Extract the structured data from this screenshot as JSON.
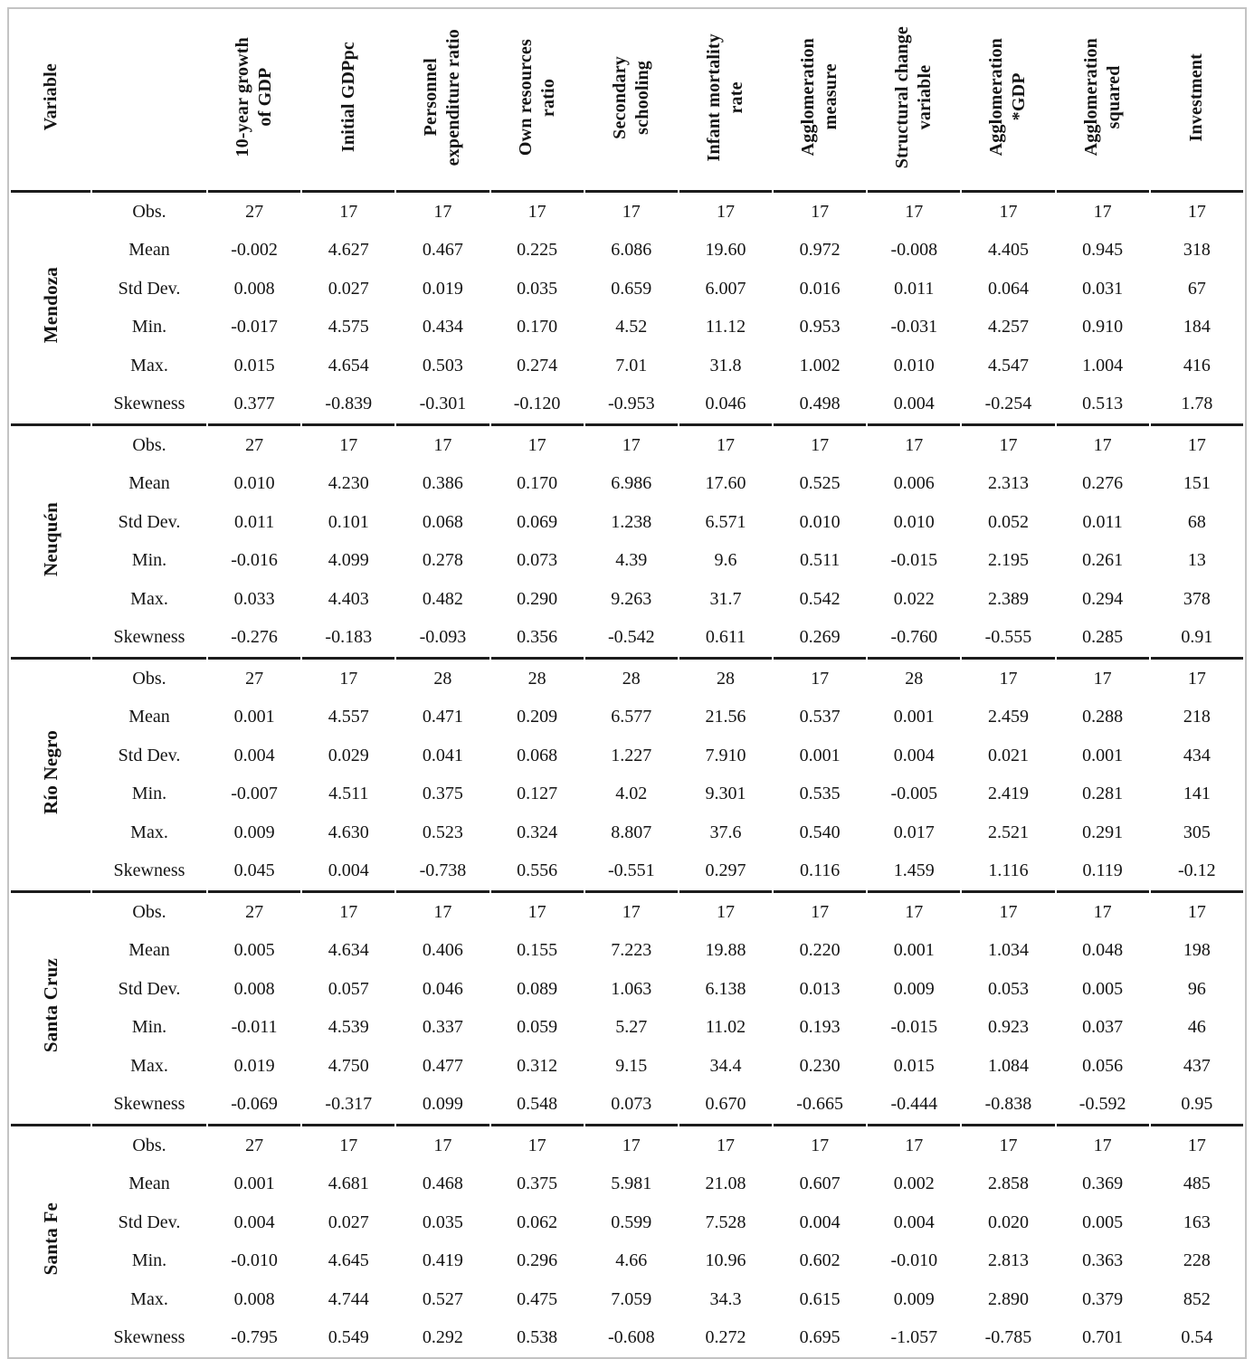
{
  "table": {
    "corner_label": "Variable",
    "columns": [
      "10-year growth\nof GDP",
      "Initial GDPpc",
      "Personnel\nexpenditure ratio",
      "Own resources\nratio",
      "Secondary\nschooling",
      "Infant mortality\nrate",
      "Agglomeration\nmeasure",
      "Structural change\nvariable",
      "Agglomeration\n*GDP",
      "Agglomeration\nsquared",
      "Investment"
    ],
    "stat_labels": [
      "Obs.",
      "Mean",
      "Std Dev.",
      "Min.",
      "Max.",
      "Skewness"
    ],
    "groups": [
      {
        "province": "Mendoza",
        "rows": [
          {
            "label": "Obs.",
            "values": [
              "27",
              "17",
              "17",
              "17",
              "17",
              "17",
              "17",
              "17",
              "17",
              "17",
              "17"
            ]
          },
          {
            "label": "Mean",
            "values": [
              "-0.002",
              "4.627",
              "0.467",
              "0.225",
              "6.086",
              "19.60",
              "0.972",
              "-0.008",
              "4.405",
              "0.945",
              "318"
            ]
          },
          {
            "label": "Std Dev.",
            "values": [
              "0.008",
              "0.027",
              "0.019",
              "0.035",
              "0.659",
              "6.007",
              "0.016",
              "0.011",
              "0.064",
              "0.031",
              "67"
            ]
          },
          {
            "label": "Min.",
            "values": [
              "-0.017",
              "4.575",
              "0.434",
              "0.170",
              "4.52",
              "11.12",
              "0.953",
              "-0.031",
              "4.257",
              "0.910",
              "184"
            ]
          },
          {
            "label": "Max.",
            "values": [
              "0.015",
              "4.654",
              "0.503",
              "0.274",
              "7.01",
              "31.8",
              "1.002",
              "0.010",
              "4.547",
              "1.004",
              "416"
            ]
          },
          {
            "label": "Skewness",
            "values": [
              "0.377",
              "-0.839",
              "-0.301",
              "-0.120",
              "-0.953",
              "0.046",
              "0.498",
              "0.004",
              "-0.254",
              "0.513",
              "1.78"
            ]
          }
        ]
      },
      {
        "province": "Neuquén",
        "rows": [
          {
            "label": "Obs.",
            "values": [
              "27",
              "17",
              "17",
              "17",
              "17",
              "17",
              "17",
              "17",
              "17",
              "17",
              "17"
            ]
          },
          {
            "label": "Mean",
            "values": [
              "0.010",
              "4.230",
              "0.386",
              "0.170",
              "6.986",
              "17.60",
              "0.525",
              "0.006",
              "2.313",
              "0.276",
              "151"
            ]
          },
          {
            "label": "Std Dev.",
            "values": [
              "0.011",
              "0.101",
              "0.068",
              "0.069",
              "1.238",
              "6.571",
              "0.010",
              "0.010",
              "0.052",
              "0.011",
              "68"
            ]
          },
          {
            "label": "Min.",
            "values": [
              "-0.016",
              "4.099",
              "0.278",
              "0.073",
              "4.39",
              "9.6",
              "0.511",
              "-0.015",
              "2.195",
              "0.261",
              "13"
            ]
          },
          {
            "label": "Max.",
            "values": [
              "0.033",
              "4.403",
              "0.482",
              "0.290",
              "9.263",
              "31.7",
              "0.542",
              "0.022",
              "2.389",
              "0.294",
              "378"
            ]
          },
          {
            "label": "Skewness",
            "values": [
              "-0.276",
              "-0.183",
              "-0.093",
              "0.356",
              "-0.542",
              "0.611",
              "0.269",
              "-0.760",
              "-0.555",
              "0.285",
              "0.91"
            ]
          }
        ]
      },
      {
        "province": "Río Negro",
        "rows": [
          {
            "label": "Obs.",
            "values": [
              "27",
              "17",
              "28",
              "28",
              "28",
              "28",
              "17",
              "28",
              "17",
              "17",
              "17"
            ]
          },
          {
            "label": "Mean",
            "values": [
              "0.001",
              "4.557",
              "0.471",
              "0.209",
              "6.577",
              "21.56",
              "0.537",
              "0.001",
              "2.459",
              "0.288",
              "218"
            ]
          },
          {
            "label": "Std Dev.",
            "values": [
              "0.004",
              "0.029",
              "0.041",
              "0.068",
              "1.227",
              "7.910",
              "0.001",
              "0.004",
              "0.021",
              "0.001",
              "434"
            ]
          },
          {
            "label": "Min.",
            "values": [
              "-0.007",
              "4.511",
              "0.375",
              "0.127",
              "4.02",
              "9.301",
              "0.535",
              "-0.005",
              "2.419",
              "0.281",
              "141"
            ]
          },
          {
            "label": "Max.",
            "values": [
              "0.009",
              "4.630",
              "0.523",
              "0.324",
              "8.807",
              "37.6",
              "0.540",
              "0.017",
              "2.521",
              "0.291",
              "305"
            ]
          },
          {
            "label": "Skewness",
            "values": [
              "0.045",
              "0.004",
              "-0.738",
              "0.556",
              "-0.551",
              "0.297",
              "0.116",
              "1.459",
              "1.116",
              "0.119",
              "-0.12"
            ]
          }
        ]
      },
      {
        "province": "Santa Cruz",
        "rows": [
          {
            "label": "Obs.",
            "values": [
              "27",
              "17",
              "17",
              "17",
              "17",
              "17",
              "17",
              "17",
              "17",
              "17",
              "17"
            ]
          },
          {
            "label": "Mean",
            "values": [
              "0.005",
              "4.634",
              "0.406",
              "0.155",
              "7.223",
              "19.88",
              "0.220",
              "0.001",
              "1.034",
              "0.048",
              "198"
            ]
          },
          {
            "label": "Std Dev.",
            "values": [
              "0.008",
              "0.057",
              "0.046",
              "0.089",
              "1.063",
              "6.138",
              "0.013",
              "0.009",
              "0.053",
              "0.005",
              "96"
            ]
          },
          {
            "label": "Min.",
            "values": [
              "-0.011",
              "4.539",
              "0.337",
              "0.059",
              "5.27",
              "11.02",
              "0.193",
              "-0.015",
              "0.923",
              "0.037",
              "46"
            ]
          },
          {
            "label": "Max.",
            "values": [
              "0.019",
              "4.750",
              "0.477",
              "0.312",
              "9.15",
              "34.4",
              "0.230",
              "0.015",
              "1.084",
              "0.056",
              "437"
            ]
          },
          {
            "label": "Skewness",
            "values": [
              "-0.069",
              "-0.317",
              "0.099",
              "0.548",
              "0.073",
              "0.670",
              "-0.665",
              "-0.444",
              "-0.838",
              "-0.592",
              "0.95"
            ]
          }
        ]
      },
      {
        "province": "Santa Fe",
        "rows": [
          {
            "label": "Obs.",
            "values": [
              "27",
              "17",
              "17",
              "17",
              "17",
              "17",
              "17",
              "17",
              "17",
              "17",
              "17"
            ]
          },
          {
            "label": "Mean",
            "values": [
              "0.001",
              "4.681",
              "0.468",
              "0.375",
              "5.981",
              "21.08",
              "0.607",
              "0.002",
              "2.858",
              "0.369",
              "485"
            ]
          },
          {
            "label": "Std Dev.",
            "values": [
              "0.004",
              "0.027",
              "0.035",
              "0.062",
              "0.599",
              "7.528",
              "0.004",
              "0.004",
              "0.020",
              "0.005",
              "163"
            ]
          },
          {
            "label": "Min.",
            "values": [
              "-0.010",
              "4.645",
              "0.419",
              "0.296",
              "4.66",
              "10.96",
              "0.602",
              "-0.010",
              "2.813",
              "0.363",
              "228"
            ]
          },
          {
            "label": "Max.",
            "values": [
              "0.008",
              "4.744",
              "0.527",
              "0.475",
              "7.059",
              "34.3",
              "0.615",
              "0.009",
              "2.890",
              "0.379",
              "852"
            ]
          },
          {
            "label": "Skewness",
            "values": [
              "-0.795",
              "0.549",
              "0.292",
              "0.538",
              "-0.608",
              "0.272",
              "0.695",
              "-1.057",
              "-0.785",
              "0.701",
              "0.54"
            ]
          }
        ]
      }
    ]
  }
}
